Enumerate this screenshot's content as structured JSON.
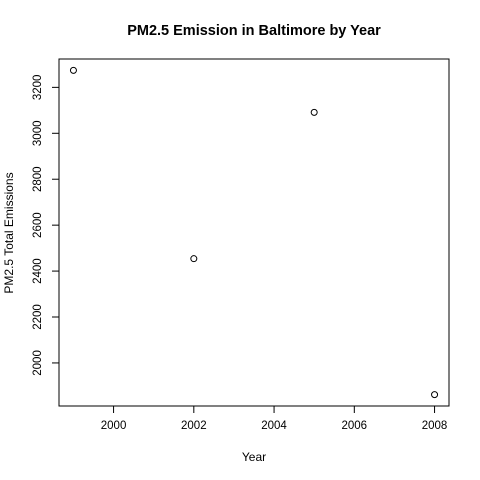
{
  "chart_data": {
    "type": "scatter",
    "title": "PM2.5 Emission in Baltimore by Year",
    "xlabel": "Year",
    "ylabel": "PM2.5 Total Emissions",
    "x": [
      1999,
      2002,
      2005,
      2008
    ],
    "y": [
      3274,
      2454,
      3091,
      1862
    ],
    "xlim": [
      1998.64,
      2008.36
    ],
    "ylim": [
      1812.5,
      3323.5
    ],
    "xticks": [
      2000,
      2002,
      2004,
      2006,
      2008
    ],
    "yticks": [
      2000,
      2200,
      2400,
      2600,
      2800,
      3000,
      3200
    ],
    "marker": "open-circle",
    "grid": false,
    "legend": "none"
  }
}
